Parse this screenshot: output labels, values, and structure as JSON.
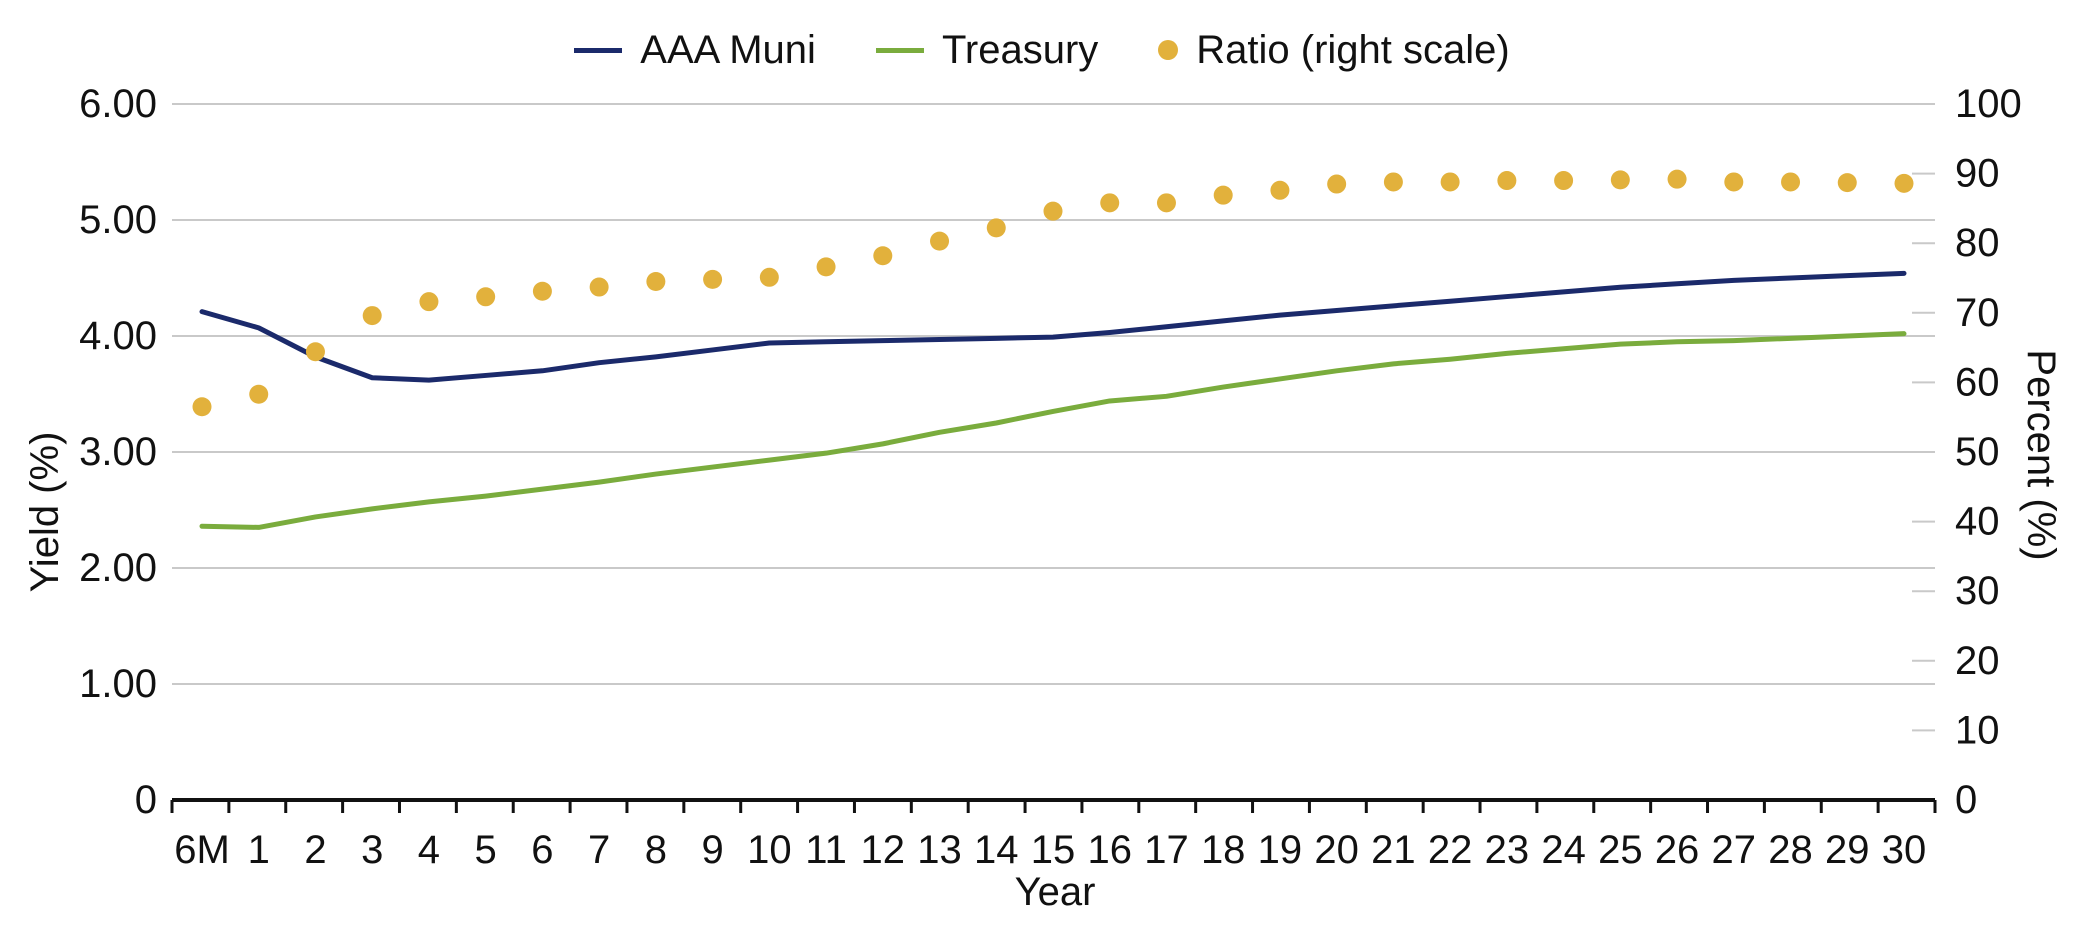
{
  "chart_data": {
    "type": "line",
    "xlabel": "Year",
    "ylabel": "Yield (%)",
    "y2label": "Percent (%)",
    "categories": [
      "6M",
      "1",
      "2",
      "3",
      "4",
      "5",
      "6",
      "7",
      "8",
      "9",
      "10",
      "11",
      "12",
      "13",
      "14",
      "15",
      "16",
      "17",
      "18",
      "19",
      "20",
      "21",
      "22",
      "23",
      "24",
      "25",
      "26",
      "27",
      "28",
      "29",
      "30"
    ],
    "ylim": [
      0,
      6
    ],
    "y2lim": [
      0,
      100
    ],
    "yticks": [
      "0",
      "1.00",
      "2.00",
      "3.00",
      "4.00",
      "5.00",
      "6.00"
    ],
    "y2ticks": [
      "0",
      "10",
      "20",
      "30",
      "40",
      "50",
      "60",
      "70",
      "80",
      "90",
      "100"
    ],
    "grid": true,
    "legend_position": "top-center",
    "series": [
      {
        "name": "AAA Muni",
        "style": "line",
        "axis": "left",
        "color": "#1b2a6b",
        "values": [
          4.21,
          4.07,
          3.82,
          3.64,
          3.62,
          3.66,
          3.7,
          3.77,
          3.82,
          3.88,
          3.94,
          3.95,
          3.96,
          3.97,
          3.98,
          3.99,
          4.03,
          4.08,
          4.13,
          4.18,
          4.22,
          4.26,
          4.3,
          4.34,
          4.38,
          4.42,
          4.45,
          4.48,
          4.5,
          4.52,
          4.54
        ]
      },
      {
        "name": "Treasury",
        "style": "line",
        "axis": "left",
        "color": "#7aac3d",
        "values": [
          2.36,
          2.35,
          2.44,
          2.51,
          2.57,
          2.62,
          2.68,
          2.74,
          2.81,
          2.87,
          2.93,
          2.99,
          3.07,
          3.17,
          3.25,
          3.35,
          3.44,
          3.48,
          3.56,
          3.63,
          3.7,
          3.76,
          3.8,
          3.85,
          3.89,
          3.93,
          3.95,
          3.96,
          3.98,
          4.0,
          4.02
        ]
      },
      {
        "name": "Ratio (right scale)",
        "style": "dots",
        "axis": "right",
        "color": "#e2b13c",
        "values": [
          56.5,
          58.3,
          64.4,
          69.6,
          71.6,
          72.3,
          73.1,
          73.7,
          74.5,
          74.8,
          75.1,
          76.6,
          78.2,
          80.3,
          82.2,
          84.6,
          85.8,
          85.8,
          86.9,
          87.6,
          88.5,
          88.8,
          88.8,
          89.0,
          89.0,
          89.1,
          89.2,
          88.8,
          88.8,
          88.7,
          88.6
        ]
      }
    ]
  }
}
